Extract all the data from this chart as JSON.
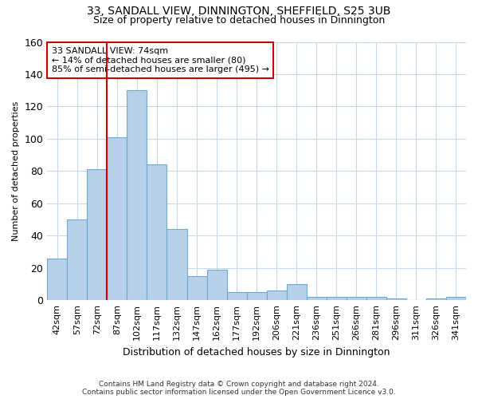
{
  "title_line1": "33, SANDALL VIEW, DINNINGTON, SHEFFIELD, S25 3UB",
  "title_line2": "Size of property relative to detached houses in Dinnington",
  "xlabel": "Distribution of detached houses by size in Dinnington",
  "ylabel": "Number of detached properties",
  "bin_labels": [
    "42sqm",
    "57sqm",
    "72sqm",
    "87sqm",
    "102sqm",
    "117sqm",
    "132sqm",
    "147sqm",
    "162sqm",
    "177sqm",
    "192sqm",
    "206sqm",
    "221sqm",
    "236sqm",
    "251sqm",
    "266sqm",
    "281sqm",
    "296sqm",
    "311sqm",
    "326sqm",
    "341sqm"
  ],
  "bar_values": [
    26,
    50,
    81,
    101,
    130,
    84,
    44,
    15,
    19,
    5,
    5,
    6,
    10,
    2,
    2,
    2,
    2,
    1,
    0,
    1,
    2
  ],
  "bar_color": "#b8d0e8",
  "bar_edge_color": "#6aaad4",
  "vline_x": 2.5,
  "vline_color": "#cc0000",
  "annotation_text": "33 SANDALL VIEW: 74sqm\n← 14% of detached houses are smaller (80)\n85% of semi-detached houses are larger (495) →",
  "annotation_box_color": "#ffffff",
  "annotation_box_edge": "#cc0000",
  "ylim": [
    0,
    160
  ],
  "yticks": [
    0,
    20,
    40,
    60,
    80,
    100,
    120,
    140,
    160
  ],
  "footer_line1": "Contains HM Land Registry data © Crown copyright and database right 2024.",
  "footer_line2": "Contains public sector information licensed under the Open Government Licence v3.0.",
  "background_color": "#ffffff",
  "grid_color": "#c8d8e8",
  "title1_fontsize": 10,
  "title2_fontsize": 9,
  "annotation_fontsize": 8,
  "ylabel_fontsize": 8,
  "xlabel_fontsize": 9,
  "ytick_fontsize": 9,
  "xtick_fontsize": 8
}
